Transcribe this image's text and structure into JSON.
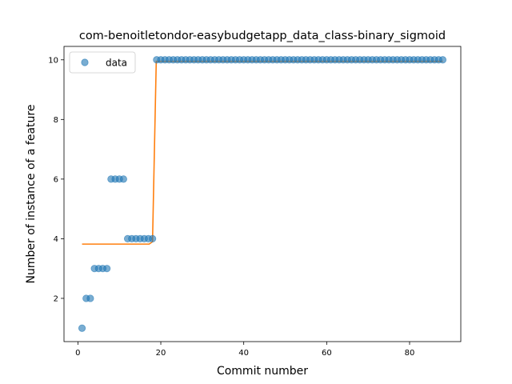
{
  "chart_data": {
    "type": "scatter",
    "title": "com-benoitletondor-easybudgetapp_data_class-binary_sigmoid",
    "xlabel": "Commit number",
    "ylabel": "Number of instance of a feature",
    "xlim": [
      -3.35,
      92.35
    ],
    "ylim": [
      0.55,
      10.45
    ],
    "xticks": [
      0,
      20,
      40,
      60,
      80
    ],
    "yticks": [
      2,
      4,
      6,
      8,
      10
    ],
    "grid": false,
    "legend": {
      "placement": "top-left",
      "entries": [
        "data"
      ]
    },
    "colors": {
      "data": "#1f77b4",
      "fit": "#ff7f0e"
    },
    "series": [
      {
        "name": "data",
        "kind": "scatter",
        "x": [
          1,
          2,
          3,
          4,
          5,
          6,
          7,
          8,
          9,
          10,
          11,
          12,
          13,
          14,
          15,
          16,
          17,
          18,
          19,
          20,
          21,
          22,
          23,
          24,
          25,
          26,
          27,
          28,
          29,
          30,
          31,
          32,
          33,
          34,
          35,
          36,
          37,
          38,
          39,
          40,
          41,
          42,
          43,
          44,
          45,
          46,
          47,
          48,
          49,
          50,
          51,
          52,
          53,
          54,
          55,
          56,
          57,
          58,
          59,
          60,
          61,
          62,
          63,
          64,
          65,
          66,
          67,
          68,
          69,
          70,
          71,
          72,
          73,
          74,
          75,
          76,
          77,
          78,
          79,
          80,
          81,
          82,
          83,
          84,
          85,
          86,
          87,
          88
        ],
        "y": [
          1,
          2,
          2,
          3,
          3,
          3,
          3,
          6,
          6,
          6,
          6,
          4,
          4,
          4,
          4,
          4,
          4,
          4,
          10,
          10,
          10,
          10,
          10,
          10,
          10,
          10,
          10,
          10,
          10,
          10,
          10,
          10,
          10,
          10,
          10,
          10,
          10,
          10,
          10,
          10,
          10,
          10,
          10,
          10,
          10,
          10,
          10,
          10,
          10,
          10,
          10,
          10,
          10,
          10,
          10,
          10,
          10,
          10,
          10,
          10,
          10,
          10,
          10,
          10,
          10,
          10,
          10,
          10,
          10,
          10,
          10,
          10,
          10,
          10,
          10,
          10,
          10,
          10,
          10,
          10,
          10,
          10,
          10,
          10,
          10,
          10,
          10,
          10
        ]
      },
      {
        "kind": "line",
        "x": [
          1,
          17.2,
          18,
          18.9,
          88
        ],
        "y": [
          3.82,
          3.82,
          3.9,
          9.95,
          9.95
        ]
      }
    ]
  }
}
